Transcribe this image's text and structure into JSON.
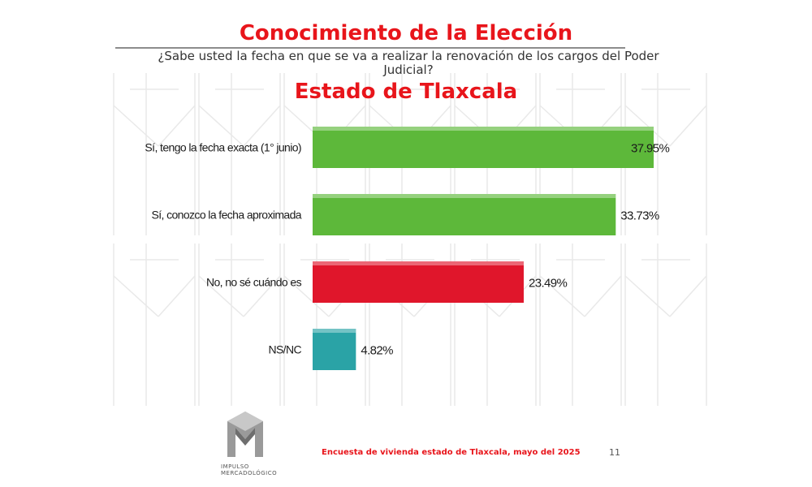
{
  "header": {
    "title": "Conocimiento de la Elección",
    "question": "¿Sabe usted la fecha en que se va a realizar la renovación de los cargos del Poder Judicial?",
    "subtitle": "Estado de Tlaxcala"
  },
  "chart_data": {
    "type": "bar",
    "orientation": "horizontal",
    "categories": [
      "Sí, tengo la fecha exacta (1° junio)",
      "Sí, conozco la fecha aproximada",
      "No, no sé cuándo es",
      "NS/NC"
    ],
    "values": [
      37.95,
      33.73,
      23.49,
      4.82
    ],
    "value_labels": [
      "37.95%",
      "33.73%",
      "23.49%",
      "4.82%"
    ],
    "colors": [
      "#5db83a",
      "#5db83a",
      "#e0162b",
      "#2aa3a6"
    ],
    "unit": "%",
    "grid": false,
    "legend": "none"
  },
  "footer": {
    "source": "Encuesta de vivienda estado de Tlaxcala, mayo  del 2025",
    "page": "11"
  },
  "logo": {
    "name": "impulso-mercadologico-logo",
    "line1": "IMPULSO",
    "line2": "MERCADOLÓGICO"
  }
}
